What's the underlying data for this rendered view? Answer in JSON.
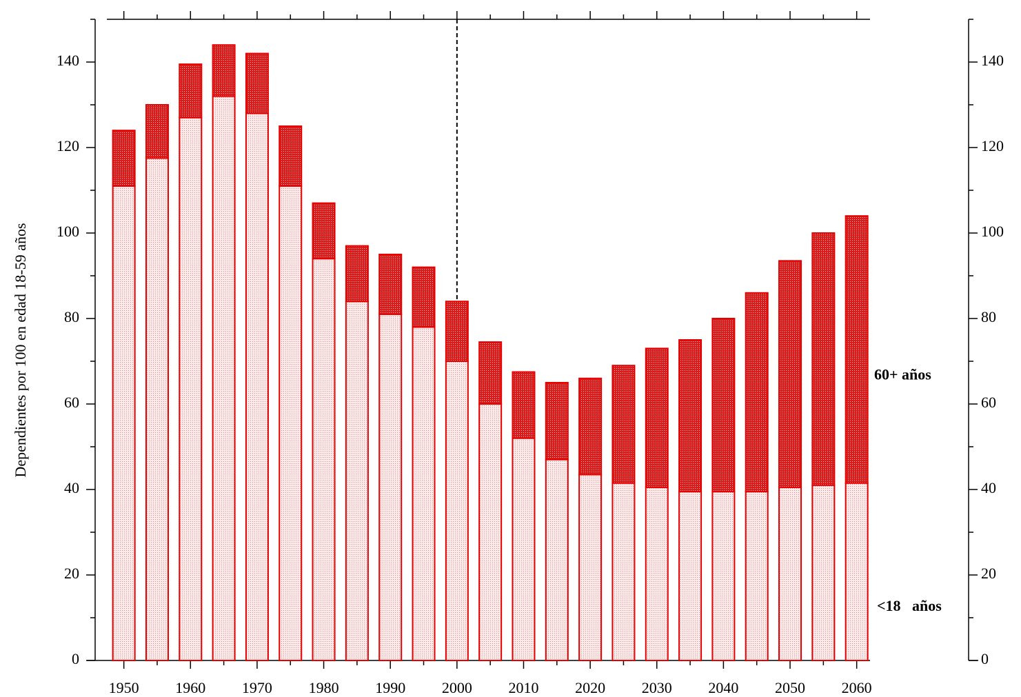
{
  "chart_data": {
    "type": "stacked_bar",
    "y_label": "Dependientes por 100 en edad 18-59 años",
    "x": [
      1950,
      1955,
      1960,
      1965,
      1970,
      1975,
      1980,
      1985,
      1990,
      1995,
      2000,
      2005,
      2010,
      2015,
      2020,
      2025,
      2030,
      2035,
      2040,
      2045,
      2050,
      2055,
      2060
    ],
    "series": [
      {
        "name": "<18   años",
        "color": "#f4d4d4",
        "values": [
          111,
          117.5,
          127,
          132,
          128,
          111,
          94,
          84,
          81,
          78,
          70,
          60,
          52,
          47,
          43.5,
          41.5,
          40.5,
          39.5,
          39.5,
          39.5,
          40.5,
          41,
          41.5
        ]
      },
      {
        "name": "60+ años",
        "color": "#d81c1c",
        "values": [
          13,
          12.5,
          12.5,
          12,
          14,
          14,
          13,
          13,
          14,
          14,
          14,
          14.5,
          15.5,
          18,
          22.5,
          27.5,
          32.5,
          35.5,
          40.5,
          46.5,
          53,
          59,
          62.5
        ]
      }
    ],
    "edge_color": "#e60000",
    "xlim": [
      1946,
      2062
    ],
    "xticks": [
      1950,
      1960,
      1970,
      1980,
      1990,
      2000,
      2010,
      2020,
      2030,
      2040,
      2050,
      2060
    ],
    "xminorticks": [
      1955,
      1965,
      1975,
      1985,
      1995,
      2005,
      2015,
      2025,
      2035,
      2045,
      2055
    ],
    "ylim": [
      0,
      150
    ],
    "yticks": [
      0,
      20,
      40,
      60,
      80,
      100,
      120,
      140
    ],
    "yminorticks": [
      10,
      30,
      50,
      70,
      90,
      110,
      130,
      150
    ],
    "vline": 2000
  }
}
